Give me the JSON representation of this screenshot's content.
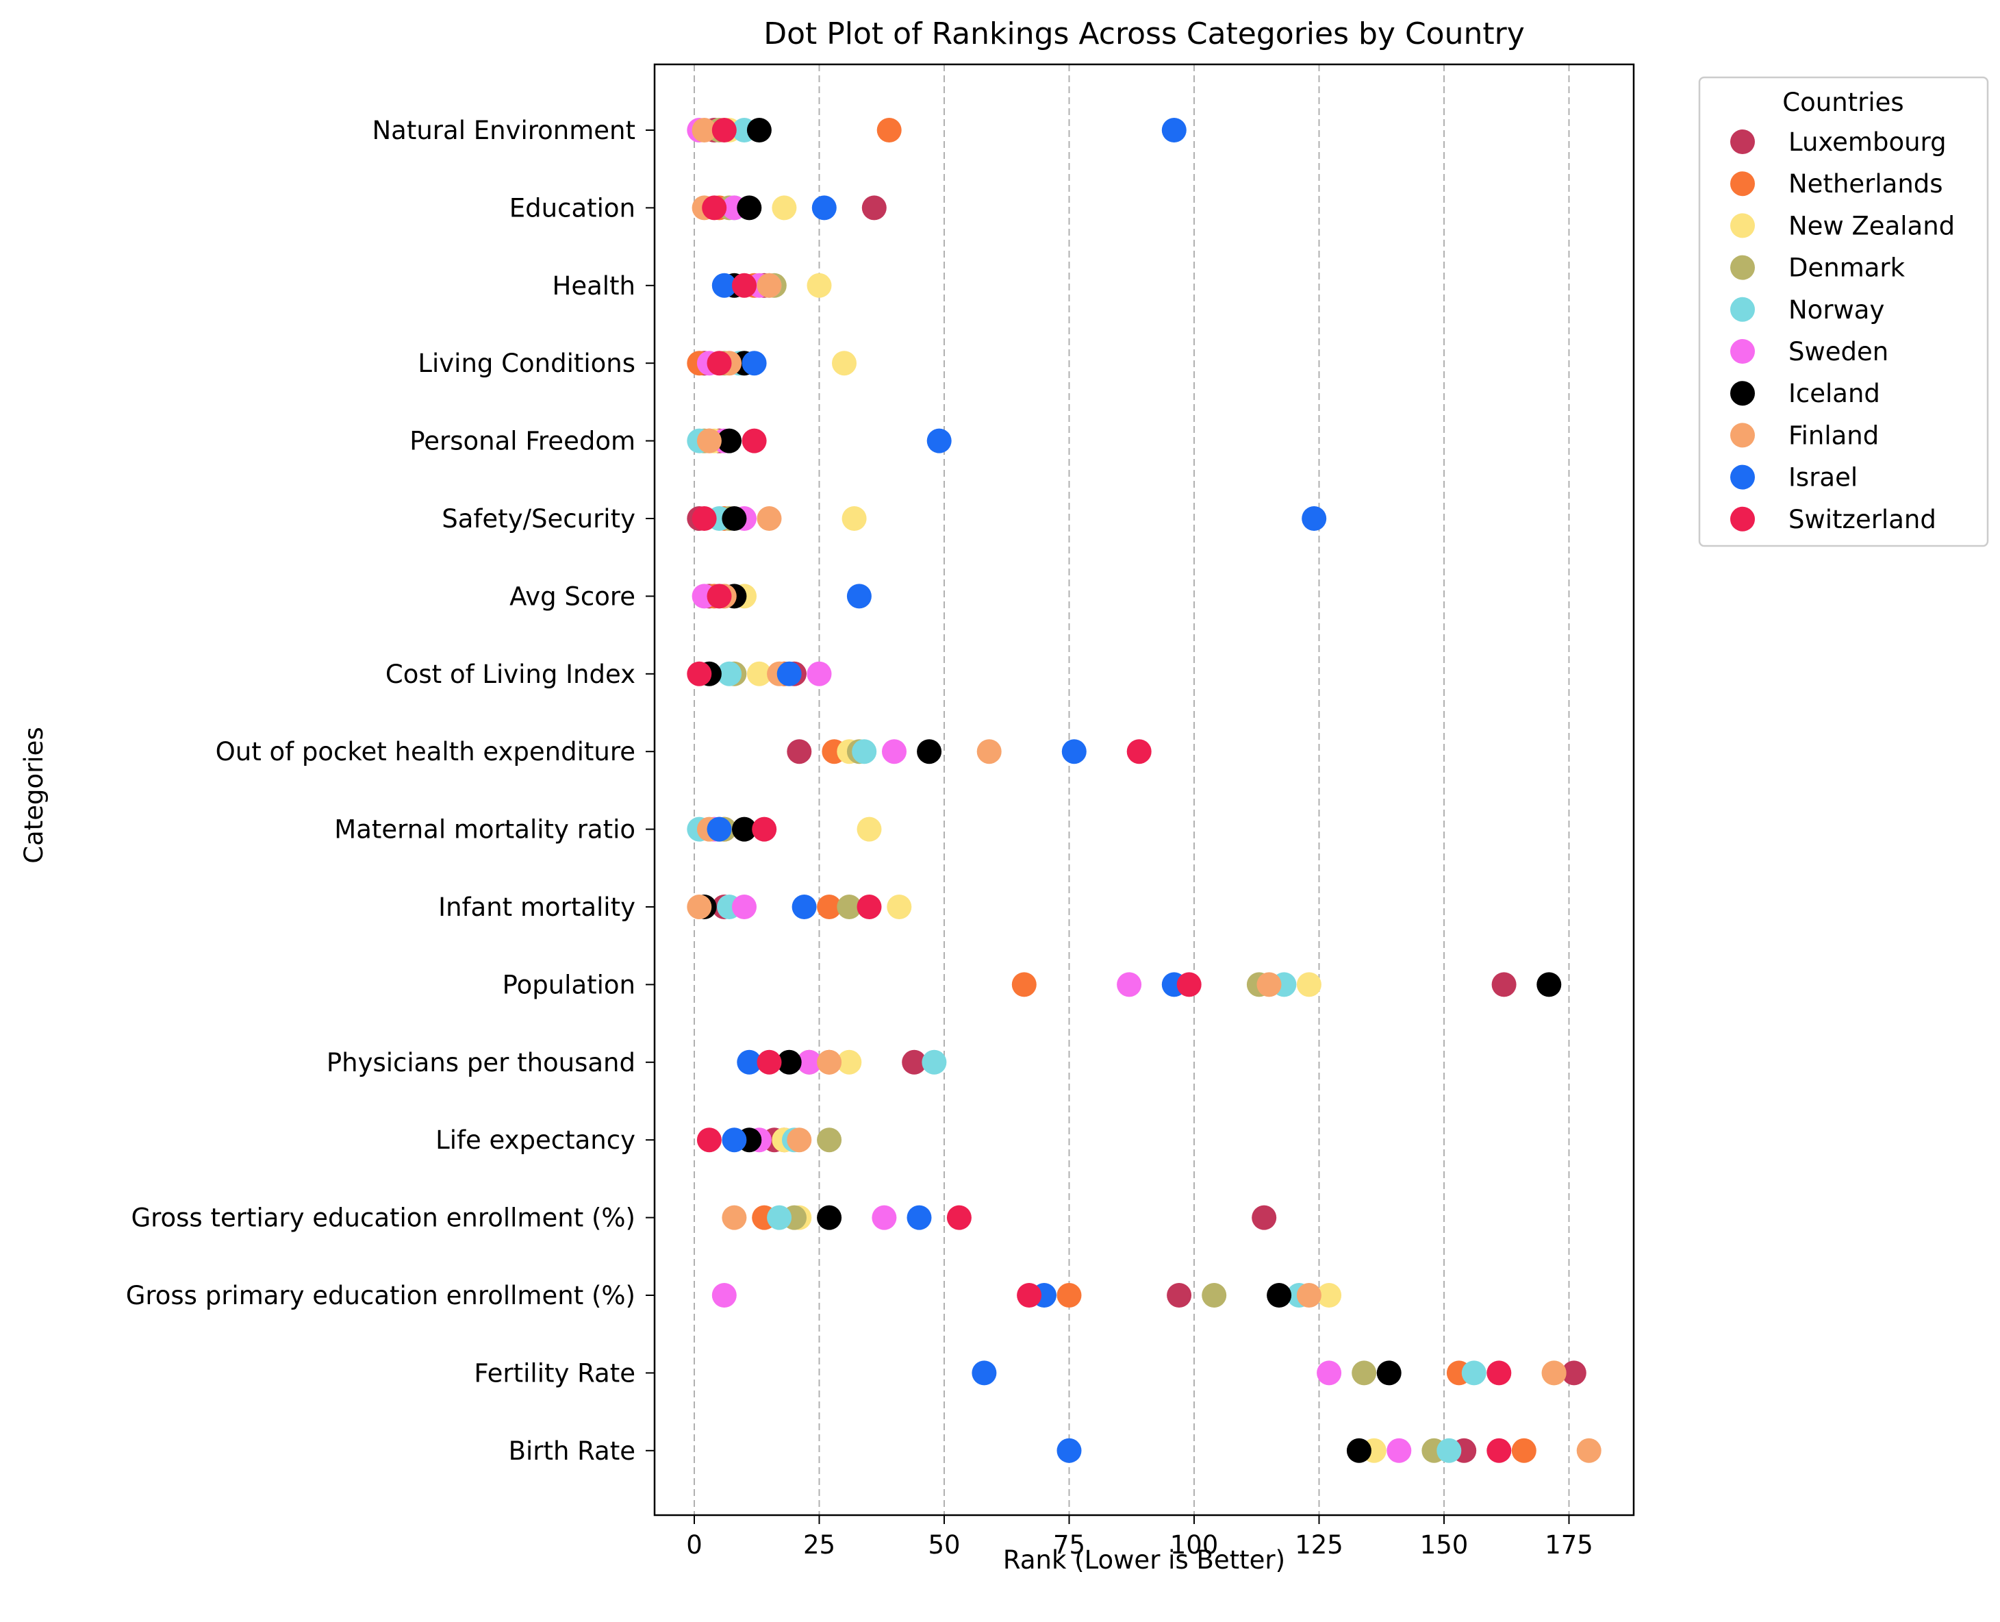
{
  "chart_data": {
    "type": "scatter",
    "title": "Dot Plot of Rankings Across Categories by Country",
    "xlabel": "Rank (Lower is Better)",
    "ylabel": "Categories",
    "xlim": [
      -7.5,
      188
    ],
    "xticks": [
      0,
      25,
      50,
      75,
      100,
      125,
      150,
      175
    ],
    "grid": "vertical dashed",
    "legend": {
      "title": "Countries",
      "placement": "outside top-right"
    },
    "categories": [
      "Natural Environment",
      "Education",
      "Health",
      "Living Conditions",
      "Personal Freedom",
      "Safety/Security",
      "Avg Score",
      "Cost of Living Index",
      "Out of pocket health expenditure",
      "Maternal mortality ratio",
      "Infant mortality",
      "Population",
      "Physicians per thousand",
      "Life expectancy",
      "Gross tertiary education enrollment (%)",
      "Gross primary education enrollment (%)",
      "Fertility Rate",
      "Birth Rate"
    ],
    "series": [
      {
        "name": "Luxembourg",
        "color": "#c2365a",
        "values": [
          4,
          36,
          14,
          2,
          5,
          1,
          3,
          20,
          21,
          5,
          6,
          162,
          44,
          16,
          114,
          97,
          176,
          154
        ]
      },
      {
        "name": "Netherlands",
        "color": "#f97535",
        "values": [
          39,
          5,
          12,
          1,
          3,
          6,
          4,
          18,
          28,
          6,
          27,
          66,
          27,
          18,
          14,
          75,
          153,
          166
        ]
      },
      {
        "name": "New Zealand",
        "color": "#fce37f",
        "values": [
          7,
          18,
          25,
          30,
          4,
          32,
          10,
          13,
          31,
          35,
          41,
          123,
          31,
          18,
          21,
          127,
          172,
          136
        ]
      },
      {
        "name": "Denmark",
        "color": "#b8b368",
        "values": [
          5,
          7,
          16,
          6,
          2,
          7,
          6,
          8,
          33,
          6,
          31,
          113,
          23,
          27,
          20,
          104,
          134,
          148
        ]
      },
      {
        "name": "Norway",
        "color": "#7ad9e1",
        "values": [
          10,
          8,
          15,
          9,
          1,
          5,
          5,
          7,
          34,
          1,
          7,
          118,
          48,
          20,
          17,
          121,
          156,
          151
        ]
      },
      {
        "name": "Sweden",
        "color": "#f76bf0",
        "values": [
          1,
          8,
          13,
          3,
          6,
          10,
          2,
          25,
          40,
          4,
          10,
          87,
          23,
          13,
          38,
          6,
          127,
          141
        ]
      },
      {
        "name": "Iceland",
        "color": "#000000",
        "values": [
          13,
          11,
          8,
          10,
          7,
          8,
          8,
          3,
          47,
          10,
          2,
          171,
          19,
          11,
          27,
          117,
          139,
          133
        ]
      },
      {
        "name": "Finland",
        "color": "#f7a46c",
        "values": [
          2,
          2,
          15,
          7,
          3,
          15,
          6,
          17,
          59,
          3,
          1,
          115,
          27,
          21,
          8,
          123,
          172,
          179
        ]
      },
      {
        "name": "Israel",
        "color": "#1c6cf4",
        "values": [
          96,
          26,
          6,
          12,
          49,
          124,
          33,
          19,
          76,
          5,
          22,
          96,
          11,
          8,
          45,
          70,
          58,
          75
        ]
      },
      {
        "name": "Switzerland",
        "color": "#ee1e50",
        "values": [
          6,
          4,
          10,
          5,
          12,
          2,
          5,
          1,
          89,
          14,
          35,
          99,
          15,
          3,
          53,
          67,
          161,
          161
        ]
      }
    ]
  }
}
